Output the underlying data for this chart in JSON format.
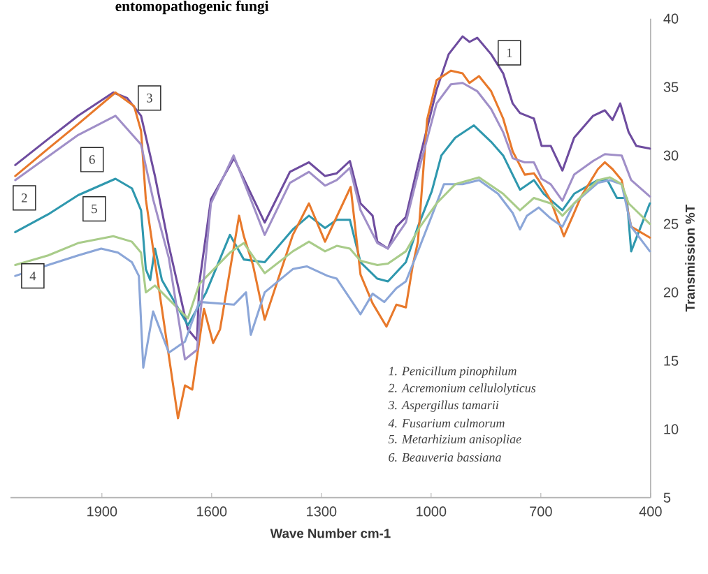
{
  "chart_data": {
    "type": "line",
    "xlabel": "Wave Number cm-1",
    "ylabel": "Transmission  %T",
    "xlim": [
      2150,
      400
    ],
    "ylim": [
      5,
      40
    ],
    "xticks": [
      1900,
      1600,
      1300,
      1000,
      700,
      400
    ],
    "yticks": [
      5,
      10,
      15,
      20,
      25,
      30,
      35,
      40
    ],
    "series": [
      {
        "color": "#6e4c9f",
        "x": [
          2137,
          2047,
          1965,
          1869,
          1831,
          1793,
          1755,
          1717,
          1665,
          1640,
          1634,
          1602,
          1539,
          1455,
          1386,
          1334,
          1290,
          1258,
          1222,
          1193,
          1160,
          1147,
          1118,
          1095,
          1069,
          1036,
          985,
          952,
          914,
          895,
          874,
          836,
          803,
          777,
          757,
          719,
          698,
          673,
          641,
          609,
          557,
          525,
          504,
          483,
          460,
          439,
          402
        ],
        "values": [
          29.3,
          31.2,
          32.9,
          34.6,
          34.2,
          32.9,
          28.5,
          23.4,
          17.3,
          16.5,
          20.6,
          26.8,
          29.8,
          25.1,
          28.8,
          29.5,
          28.5,
          28.7,
          29.6,
          26.5,
          25.6,
          23.7,
          23.2,
          24.8,
          25.5,
          29.3,
          34.8,
          37.4,
          38.7,
          38.3,
          38.6,
          37.4,
          36.0,
          33.8,
          33.1,
          32.7,
          30.7,
          30.7,
          28.9,
          31.3,
          32.9,
          33.3,
          32.6,
          33.8,
          31.7,
          30.7,
          30.5
        ]
      },
      {
        "color": "#2f98ae",
        "x": [
          2137,
          2047,
          1965,
          1863,
          1818,
          1793,
          1780,
          1768,
          1755,
          1736,
          1665,
          1615,
          1550,
          1512,
          1455,
          1378,
          1334,
          1290,
          1258,
          1222,
          1193,
          1147,
          1118,
          1069,
          1036,
          998,
          972,
          934,
          883,
          836,
          803,
          757,
          719,
          692,
          641,
          609,
          544,
          518,
          492,
          465,
          453,
          402
        ],
        "values": [
          24.4,
          25.7,
          27.1,
          28.3,
          27.6,
          26.0,
          21.7,
          20.9,
          23.2,
          20.9,
          17.6,
          20.0,
          24.2,
          22.4,
          22.2,
          24.6,
          25.6,
          24.7,
          25.3,
          25.3,
          22.2,
          21.0,
          20.8,
          22.2,
          24.8,
          27.4,
          30.0,
          31.3,
          32.2,
          31.0,
          30.0,
          27.5,
          28.2,
          27.2,
          26.0,
          27.2,
          28.2,
          28.2,
          26.9,
          26.9,
          23.0,
          26.5
        ]
      },
      {
        "color": "#e8792b",
        "x": [
          2137,
          2047,
          1965,
          1863,
          1812,
          1793,
          1780,
          1692,
          1673,
          1653,
          1621,
          1596,
          1577,
          1525,
          1512,
          1487,
          1455,
          1378,
          1334,
          1290,
          1220,
          1193,
          1160,
          1122,
          1095,
          1069,
          1050,
          1036,
          1011,
          985,
          946,
          914,
          895,
          869,
          836,
          803,
          777,
          744,
          719,
          706,
          673,
          637,
          609,
          590,
          544,
          525,
          504,
          479,
          453,
          402
        ],
        "values": [
          28.5,
          30.5,
          32.3,
          34.6,
          33.6,
          31.8,
          26.8,
          10.8,
          13.2,
          12.9,
          18.8,
          16.3,
          17.3,
          25.6,
          24.1,
          22.0,
          18.0,
          24.2,
          26.5,
          23.7,
          27.7,
          21.3,
          19.2,
          17.5,
          19.1,
          18.9,
          22.0,
          23.7,
          32.6,
          35.5,
          36.2,
          36.0,
          35.3,
          35.8,
          34.7,
          32.7,
          30.3,
          28.6,
          28.7,
          28.2,
          26.7,
          24.1,
          25.8,
          27.0,
          29.0,
          29.5,
          29.0,
          28.2,
          24.8,
          24.0
        ]
      },
      {
        "color": "#8ba6d8",
        "x": [
          2137,
          2047,
          1965,
          1902,
          1856,
          1818,
          1799,
          1787,
          1760,
          1717,
          1673,
          1634,
          1539,
          1506,
          1493,
          1455,
          1378,
          1340,
          1283,
          1258,
          1193,
          1160,
          1128,
          1095,
          1069,
          1036,
          998,
          965,
          914,
          869,
          817,
          777,
          757,
          738,
          706,
          673,
          641,
          609,
          544,
          511,
          479,
          453,
          402
        ],
        "values": [
          21.2,
          22.0,
          22.7,
          23.2,
          22.9,
          22.2,
          21.2,
          14.5,
          18.6,
          15.6,
          16.4,
          19.3,
          19.1,
          20.0,
          16.9,
          20.0,
          21.7,
          21.9,
          21.2,
          21.0,
          18.4,
          19.9,
          19.3,
          20.3,
          20.8,
          23.0,
          25.6,
          27.9,
          27.9,
          28.2,
          27.2,
          25.8,
          24.6,
          25.6,
          26.2,
          25.4,
          24.8,
          26.5,
          28.0,
          28.2,
          27.9,
          24.8,
          23.0
        ]
      },
      {
        "color": "#a9cc8a",
        "x": [
          2137,
          2047,
          1965,
          1869,
          1818,
          1793,
          1780,
          1755,
          1665,
          1634,
          1550,
          1512,
          1455,
          1378,
          1334,
          1290,
          1258,
          1222,
          1193,
          1147,
          1118,
          1069,
          1030,
          985,
          934,
          869,
          803,
          757,
          719,
          673,
          641,
          609,
          544,
          511,
          479,
          460,
          402
        ],
        "values": [
          22.0,
          22.7,
          23.6,
          24.1,
          23.7,
          22.9,
          20.0,
          20.5,
          18.1,
          20.6,
          22.9,
          23.6,
          21.4,
          23.0,
          23.7,
          23.0,
          23.4,
          23.2,
          22.3,
          22.0,
          22.1,
          23.0,
          24.8,
          26.5,
          27.9,
          28.4,
          27.2,
          26.0,
          26.9,
          26.5,
          25.6,
          26.5,
          28.2,
          28.4,
          27.9,
          26.5,
          25.0
        ]
      },
      {
        "color": "#a08fc8",
        "x": [
          2137,
          1965,
          1863,
          1793,
          1760,
          1717,
          1673,
          1640,
          1602,
          1540,
          1455,
          1386,
          1334,
          1290,
          1258,
          1222,
          1193,
          1147,
          1118,
          1069,
          1030,
          985,
          946,
          914,
          874,
          836,
          803,
          777,
          744,
          719,
          698,
          673,
          641,
          609,
          557,
          525,
          479,
          453,
          402
        ],
        "values": [
          28.2,
          31.5,
          32.9,
          30.8,
          26.8,
          22.5,
          15.1,
          15.8,
          26.5,
          30.0,
          24.2,
          28.0,
          28.8,
          27.8,
          28.2,
          29.1,
          26.0,
          23.6,
          23.2,
          25.1,
          29.3,
          33.8,
          35.2,
          35.3,
          34.7,
          33.4,
          31.7,
          29.8,
          29.5,
          29.5,
          28.3,
          27.9,
          26.7,
          28.6,
          29.6,
          30.1,
          30.0,
          28.2,
          27.0
        ]
      }
    ],
    "annotations": [
      "entomopathogenic fungi",
      "1. Penicillum pinophilum",
      "2. Acremonium cellulolyticus",
      "3. Aspergillus tamarii",
      "4. Fusarium culmorum",
      "5. Metarhizium anisopliae",
      "6. Beauveria bassiana",
      {
        "text": "1",
        "x": 786,
        "y": 37.5
      },
      {
        "text": "2",
        "x": 2112,
        "y": 26.9
      },
      {
        "text": "3",
        "x": 1770,
        "y": 34.2
      },
      {
        "text": "4",
        "x": 2089,
        "y": 21.2
      },
      {
        "text": "5",
        "x": 1921,
        "y": 26.1
      },
      {
        "text": "6",
        "x": 1927,
        "y": 29.7
      }
    ]
  }
}
